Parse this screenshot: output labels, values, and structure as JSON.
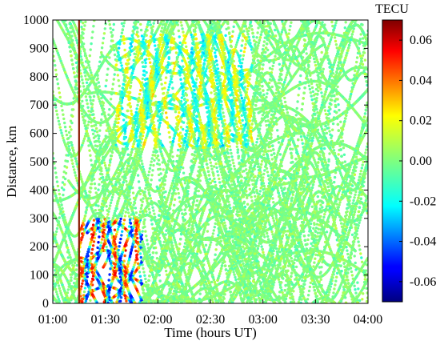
{
  "chart_data": {
    "type": "scatter",
    "title": "",
    "xlabel": "Time (hours UT)",
    "ylabel": "Distance, km",
    "x_tick_labels": [
      "01:00",
      "01:30",
      "02:00",
      "02:30",
      "03:00",
      "03:30",
      "04:00"
    ],
    "x_ticks_hours": [
      1.0,
      1.5,
      2.0,
      2.5,
      3.0,
      3.5,
      4.0
    ],
    "xlim_hours": [
      1.0,
      4.0
    ],
    "y_ticks": [
      0,
      100,
      200,
      300,
      400,
      500,
      600,
      700,
      800,
      900,
      1000
    ],
    "ylim": [
      0,
      1000
    ],
    "marker_time_hours": 1.25,
    "colorbar": {
      "title": "TECU",
      "ticks": [
        "0.06",
        "0.04",
        "0.02",
        "0.00",
        "-0.02",
        "-0.04",
        "-0.06"
      ],
      "tick_values": [
        0.06,
        0.04,
        0.02,
        0.0,
        -0.02,
        -0.04,
        -0.06
      ],
      "range": [
        -0.07,
        0.07
      ],
      "colormap": "jet"
    },
    "colors": {
      "marker_line": "#8b1a00",
      "background": "#ffffff"
    }
  }
}
